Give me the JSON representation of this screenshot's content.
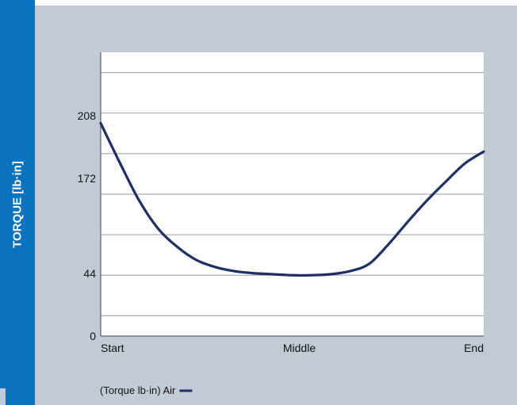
{
  "chart_data": {
    "type": "line",
    "ylabel": "TORQUE [lb·in]",
    "xlabel": "",
    "title": "",
    "x_categories": [
      "Start",
      "Middle",
      "End"
    ],
    "y_ticks": [
      {
        "label": "208",
        "value": 208
      },
      {
        "label": "172",
        "value": 172
      },
      {
        "label": "44",
        "value": 44
      },
      {
        "label": "0",
        "value": 0
      }
    ],
    "ylim": [
      0,
      280
    ],
    "grid": true,
    "legend_position": "bottom-left",
    "series": [
      {
        "name": "(Torque lb·in) Air",
        "color": "#1c2f66",
        "x": [
          0,
          0.05,
          0.1,
          0.15,
          0.2,
          0.25,
          0.3,
          0.35,
          0.4,
          0.45,
          0.5,
          0.55,
          0.6,
          0.65,
          0.7,
          0.75,
          0.8,
          0.85,
          0.9,
          0.95,
          1.0
        ],
        "values": [
          210,
          171,
          134,
          106,
          88,
          75,
          68,
          64,
          62,
          61,
          60,
          60,
          61,
          64,
          71,
          90,
          112,
          133,
          152,
          170,
          182
        ]
      }
    ]
  },
  "colors": {
    "side_bar": "#0b72c0",
    "panel": "#c2cbd5",
    "plot_bg": "#ffffff",
    "line": "#1c2f66"
  }
}
